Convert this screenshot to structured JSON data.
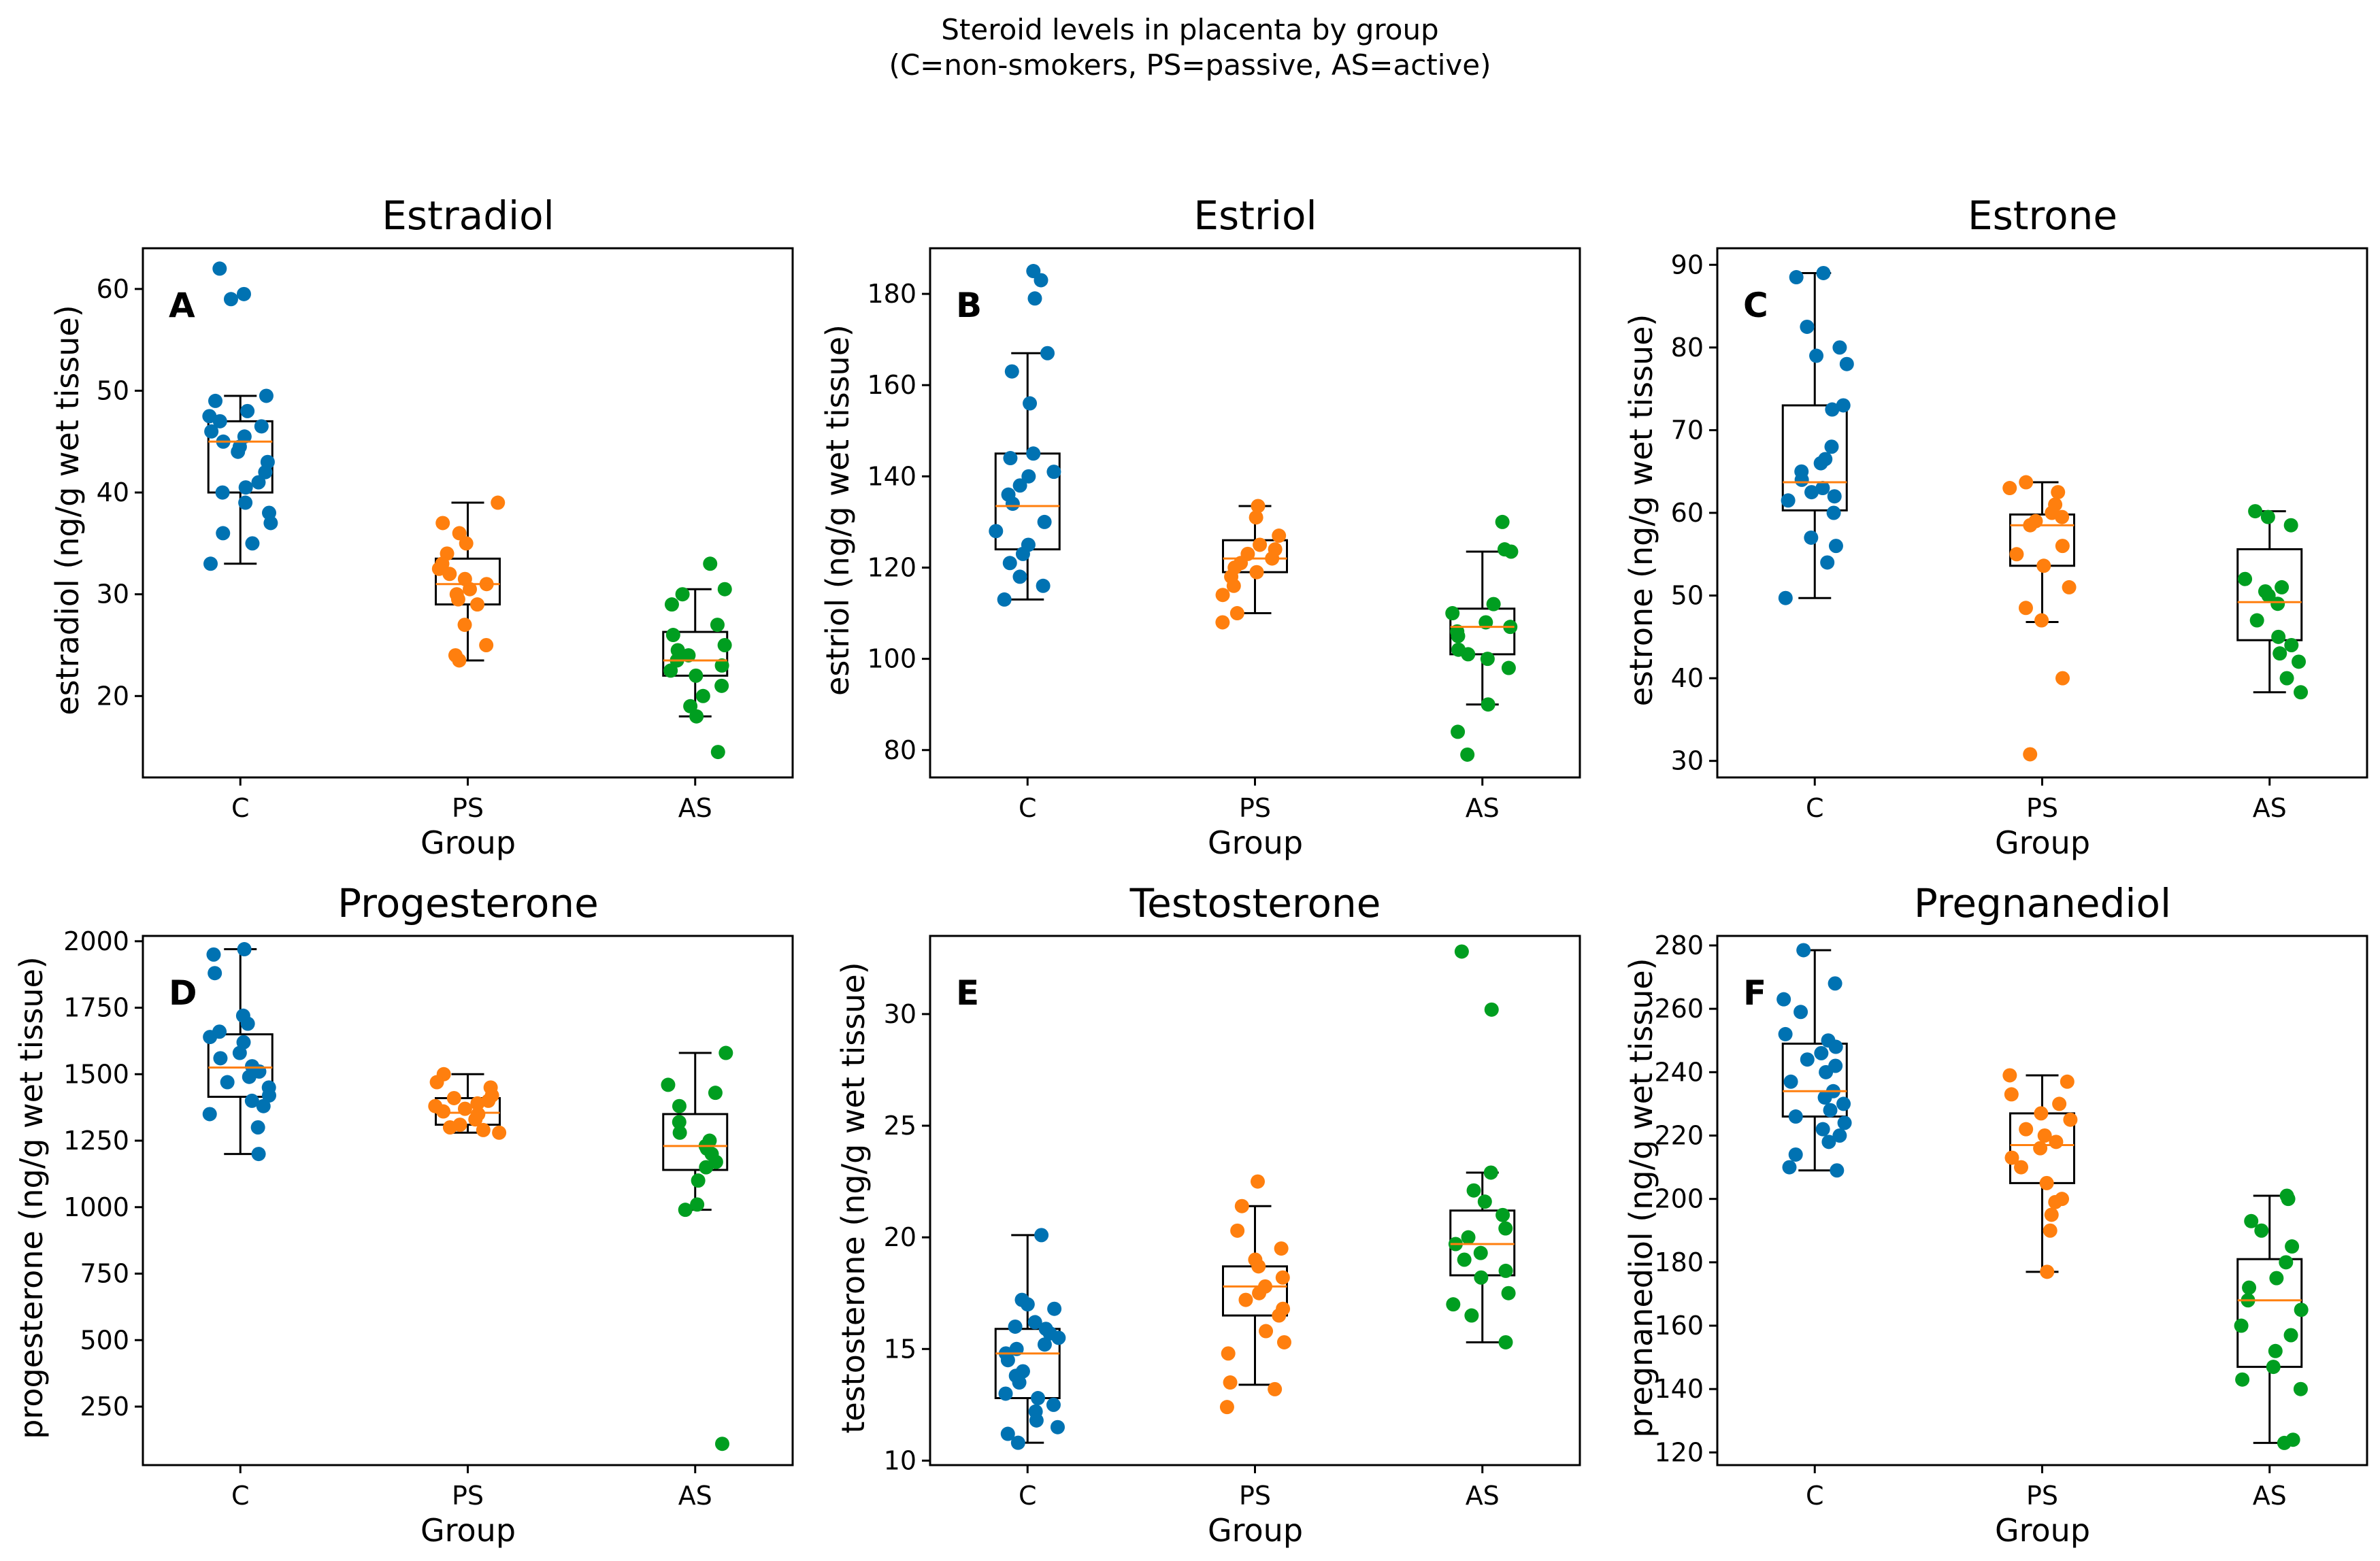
{
  "figure": {
    "suptitle_line1": "Steroid levels in placenta by group",
    "suptitle_line2": "(C=non-smokers, PS=passive, AS=active)"
  },
  "colors": {
    "C": "#0072b2",
    "PS": "#ff7f0e",
    "AS": "#009e20",
    "median": "#ff7f0e",
    "box": "#000000"
  },
  "chart_data": [
    {
      "type": "box+strip",
      "panel": "A",
      "title": "Estradiol",
      "xlabel": "Group",
      "ylabel": "estradiol (ng/g wet tissue)",
      "categories": [
        "C",
        "PS",
        "AS"
      ],
      "ylim": [
        12,
        64
      ],
      "yticks": [
        20,
        30,
        40,
        50,
        60
      ],
      "boxes": [
        {
          "group": "C",
          "whislo": 33,
          "q1": 40,
          "med": 45,
          "q3": 47,
          "whishi": 49.5
        },
        {
          "group": "PS",
          "whislo": 23.5,
          "q1": 29,
          "med": 31,
          "q3": 33.5,
          "whishi": 39
        },
        {
          "group": "AS",
          "whislo": 18,
          "q1": 22,
          "med": 23.5,
          "q3": 26.3,
          "whishi": 30.5
        }
      ],
      "points": [
        {
          "group": "C",
          "values": [
            62,
            59.5,
            59,
            49.5,
            49,
            48,
            47.5,
            47,
            46.5,
            46,
            45.5,
            45,
            44.5,
            44,
            43,
            42,
            41,
            40.5,
            40,
            39,
            38,
            37,
            36,
            35,
            33
          ]
        },
        {
          "group": "PS",
          "values": [
            39,
            37,
            36,
            35,
            34,
            33,
            32.5,
            32,
            31.5,
            31,
            30.5,
            30,
            29.5,
            29,
            27,
            25,
            24,
            23.5
          ]
        },
        {
          "group": "AS",
          "values": [
            33,
            30.5,
            30,
            29,
            27,
            26,
            25,
            24.5,
            24,
            23.5,
            23,
            22.5,
            22,
            21,
            20,
            19,
            18,
            14.5
          ]
        }
      ]
    },
    {
      "type": "box+strip",
      "panel": "B",
      "title": "Estriol",
      "xlabel": "Group",
      "ylabel": "estriol (ng/g wet tissue)",
      "categories": [
        "C",
        "PS",
        "AS"
      ],
      "ylim": [
        74,
        190
      ],
      "yticks": [
        80,
        100,
        120,
        140,
        160,
        180
      ],
      "boxes": [
        {
          "group": "C",
          "whislo": 113,
          "q1": 124,
          "med": 133.5,
          "q3": 145,
          "whishi": 167
        },
        {
          "group": "PS",
          "whislo": 110,
          "q1": 119,
          "med": 122,
          "q3": 126,
          "whishi": 133.5
        },
        {
          "group": "AS",
          "whislo": 90,
          "q1": 101,
          "med": 107,
          "q3": 111,
          "whishi": 123.5
        }
      ],
      "points": [
        {
          "group": "C",
          "values": [
            185,
            183,
            179,
            167,
            163,
            156,
            145,
            144,
            141,
            140,
            138,
            136,
            134,
            130,
            128,
            125,
            123,
            121,
            118,
            116,
            113
          ]
        },
        {
          "group": "PS",
          "values": [
            133.5,
            131,
            127,
            125,
            124,
            123,
            122,
            121,
            120,
            119,
            118,
            116,
            114,
            110,
            108
          ]
        },
        {
          "group": "AS",
          "values": [
            130,
            124,
            123.5,
            112,
            110,
            108,
            107,
            106,
            105,
            102,
            101,
            100,
            98,
            90,
            84,
            79
          ]
        }
      ]
    },
    {
      "type": "box+strip",
      "panel": "C",
      "title": "Estrone",
      "xlabel": "Group",
      "ylabel": "estrone (ng/g wet tissue)",
      "categories": [
        "C",
        "PS",
        "AS"
      ],
      "ylim": [
        28,
        92
      ],
      "yticks": [
        30,
        40,
        50,
        60,
        70,
        80,
        90
      ],
      "boxes": [
        {
          "group": "C",
          "whislo": 49.7,
          "q1": 60.3,
          "med": 63.7,
          "q3": 73,
          "whishi": 89
        },
        {
          "group": "PS",
          "whislo": 46.8,
          "q1": 53.6,
          "med": 58.5,
          "q3": 59.8,
          "whishi": 63.7
        },
        {
          "group": "AS",
          "whislo": 38.3,
          "q1": 44.6,
          "med": 49.2,
          "q3": 55.6,
          "whishi": 60.2
        }
      ],
      "points": [
        {
          "group": "C",
          "values": [
            89,
            88.5,
            82.5,
            80,
            79,
            78,
            73,
            72.5,
            68,
            66.5,
            66,
            65,
            64,
            63,
            62.5,
            62,
            61.5,
            60,
            57,
            56,
            54,
            49.7
          ]
        },
        {
          "group": "PS",
          "values": [
            63.7,
            63,
            62.5,
            61,
            60,
            59.5,
            59,
            58.5,
            56,
            55,
            53.6,
            51,
            48.5,
            47,
            40,
            30.8
          ]
        },
        {
          "group": "AS",
          "values": [
            60.2,
            59.5,
            58.5,
            52,
            51,
            50.5,
            50,
            49,
            47,
            45,
            44,
            43,
            42,
            40,
            38.3
          ]
        }
      ]
    },
    {
      "type": "box+strip",
      "panel": "D",
      "title": "Progesterone",
      "xlabel": "Group",
      "ylabel": "progesterone (ng/g wet tissue)",
      "categories": [
        "C",
        "PS",
        "AS"
      ],
      "ylim": [
        30,
        2020
      ],
      "yticks": [
        250,
        500,
        750,
        1000,
        1250,
        1500,
        1750,
        2000
      ],
      "boxes": [
        {
          "group": "C",
          "whislo": 1200,
          "q1": 1415,
          "med": 1525,
          "q3": 1650,
          "whishi": 1970
        },
        {
          "group": "PS",
          "whislo": 1280,
          "q1": 1310,
          "med": 1355,
          "q3": 1410,
          "whishi": 1500
        },
        {
          "group": "AS",
          "whislo": 990,
          "q1": 1140,
          "med": 1230,
          "q3": 1350,
          "whishi": 1580
        }
      ],
      "points": [
        {
          "group": "C",
          "values": [
            1970,
            1950,
            1880,
            1720,
            1690,
            1660,
            1640,
            1620,
            1580,
            1560,
            1530,
            1510,
            1490,
            1470,
            1450,
            1420,
            1400,
            1380,
            1350,
            1300,
            1200
          ]
        },
        {
          "group": "PS",
          "values": [
            1500,
            1470,
            1450,
            1420,
            1410,
            1400,
            1390,
            1380,
            1370,
            1360,
            1350,
            1330,
            1310,
            1300,
            1290,
            1280
          ]
        },
        {
          "group": "AS",
          "values": [
            1580,
            1460,
            1430,
            1380,
            1320,
            1280,
            1250,
            1230,
            1220,
            1200,
            1170,
            1150,
            1100,
            1010,
            990,
            110
          ]
        }
      ]
    },
    {
      "type": "box+strip",
      "panel": "E",
      "title": "Testosterone",
      "xlabel": "Group",
      "ylabel": "testosterone (ng/g wet tissue)",
      "categories": [
        "C",
        "PS",
        "AS"
      ],
      "ylim": [
        9.8,
        33.5
      ],
      "yticks": [
        10,
        15,
        20,
        25,
        30
      ],
      "boxes": [
        {
          "group": "C",
          "whislo": 10.8,
          "q1": 12.8,
          "med": 14.8,
          "q3": 15.9,
          "whishi": 20.1
        },
        {
          "group": "PS",
          "whislo": 13.4,
          "q1": 16.5,
          "med": 17.8,
          "q3": 18.7,
          "whishi": 21.4
        },
        {
          "group": "AS",
          "whislo": 15.3,
          "q1": 18.3,
          "med": 19.7,
          "q3": 21.2,
          "whishi": 22.9
        }
      ],
      "points": [
        {
          "group": "C",
          "values": [
            20.1,
            17.2,
            17,
            16.8,
            16.2,
            16,
            15.9,
            15.7,
            15.5,
            15.2,
            15,
            14.8,
            14.5,
            14,
            13.8,
            13.5,
            13,
            12.8,
            12.5,
            12.2,
            11.8,
            11.5,
            11.2,
            10.8
          ]
        },
        {
          "group": "PS",
          "values": [
            22.5,
            21.4,
            20.3,
            19.5,
            19,
            18.7,
            18.2,
            17.8,
            17.5,
            17.2,
            16.8,
            16.5,
            15.8,
            15.3,
            14.8,
            13.5,
            13.2,
            12.4
          ]
        },
        {
          "group": "AS",
          "values": [
            32.8,
            30.2,
            22.9,
            22.1,
            21.6,
            21,
            20.4,
            20,
            19.7,
            19.3,
            19,
            18.5,
            18.2,
            17.5,
            17,
            16.5,
            15.3
          ]
        }
      ]
    },
    {
      "type": "box+strip",
      "panel": "F",
      "title": "Pregnanediol",
      "xlabel": "Group",
      "ylabel": "pregnanediol (ng/g wet tissue)",
      "categories": [
        "C",
        "PS",
        "AS"
      ],
      "ylim": [
        116,
        283
      ],
      "yticks": [
        120,
        140,
        160,
        180,
        200,
        220,
        240,
        260,
        280
      ],
      "boxes": [
        {
          "group": "C",
          "whislo": 209,
          "q1": 226,
          "med": 234,
          "q3": 249,
          "whishi": 278.5
        },
        {
          "group": "PS",
          "whislo": 177,
          "q1": 205,
          "med": 217,
          "q3": 227,
          "whishi": 239
        },
        {
          "group": "AS",
          "whislo": 123,
          "q1": 147,
          "med": 168,
          "q3": 181,
          "whishi": 201
        }
      ],
      "points": [
        {
          "group": "C",
          "values": [
            278.5,
            268,
            263,
            259,
            252,
            250,
            248,
            246,
            244,
            242,
            240,
            237,
            234,
            232,
            230,
            228,
            226,
            224,
            222,
            220,
            218,
            214,
            210,
            209
          ]
        },
        {
          "group": "PS",
          "values": [
            239,
            237,
            233,
            230,
            227,
            225,
            222,
            220,
            218,
            216,
            213,
            210,
            205,
            200,
            199,
            195,
            190,
            177
          ]
        },
        {
          "group": "AS",
          "values": [
            201,
            200,
            193,
            190,
            185,
            180,
            175,
            172,
            168,
            165,
            160,
            157,
            152,
            147,
            143,
            140,
            124,
            123
          ]
        }
      ]
    }
  ]
}
